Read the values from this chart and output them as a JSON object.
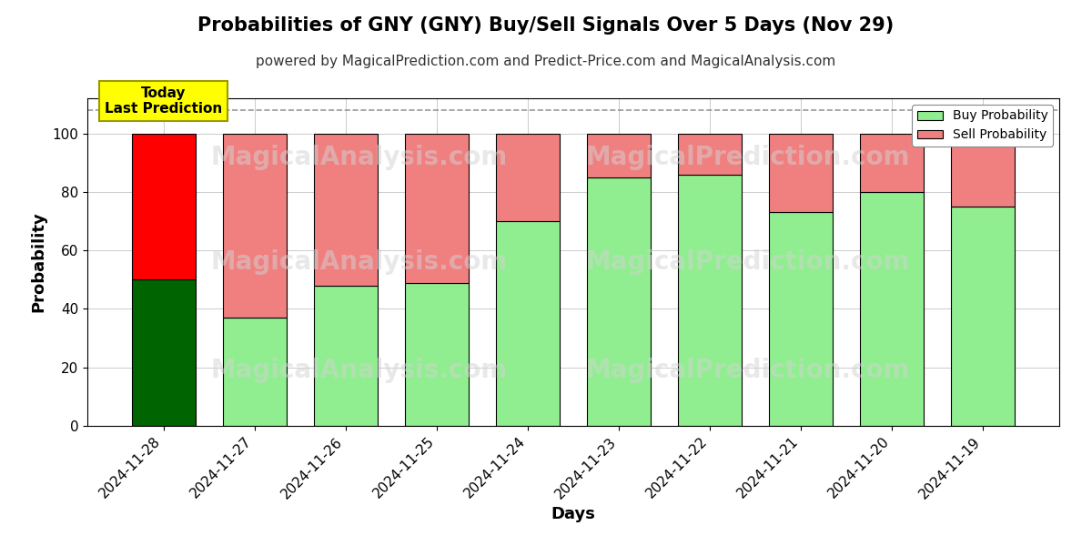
{
  "title": "Probabilities of GNY (GNY) Buy/Sell Signals Over 5 Days (Nov 29)",
  "subtitle": "powered by MagicalPrediction.com and Predict-Price.com and MagicalAnalysis.com",
  "xlabel": "Days",
  "ylabel": "Probability",
  "watermark1": "MagicalAnalysis.com",
  "watermark2": "MagicalPrediction.com",
  "dates": [
    "2024-11-28",
    "2024-11-27",
    "2024-11-26",
    "2024-11-25",
    "2024-11-24",
    "2024-11-23",
    "2024-11-22",
    "2024-11-21",
    "2024-11-20",
    "2024-11-19"
  ],
  "buy_values": [
    50,
    37,
    48,
    49,
    70,
    85,
    86,
    73,
    80,
    75
  ],
  "sell_values": [
    50,
    63,
    52,
    51,
    30,
    15,
    14,
    27,
    20,
    25
  ],
  "today_buy_color": "#006400",
  "today_sell_color": "#FF0000",
  "buy_color": "#90EE90",
  "sell_color": "#F08080",
  "bar_edge_color": "#000000",
  "ylim": [
    0,
    112
  ],
  "yticks": [
    0,
    20,
    40,
    60,
    80,
    100
  ],
  "dashed_line_y": 108,
  "today_annotation": "Today\nLast Prediction",
  "legend_buy_label": "Buy Probability",
  "legend_sell_label": "Sell Probability",
  "title_fontsize": 15,
  "subtitle_fontsize": 11,
  "axis_label_fontsize": 13,
  "tick_fontsize": 11,
  "bg_color": "#ffffff",
  "plot_bg_color": "#ffffff",
  "grid_color": "#aaaaaa",
  "today_annotation_bg": "#FFFF00",
  "today_annotation_border": "#999900"
}
